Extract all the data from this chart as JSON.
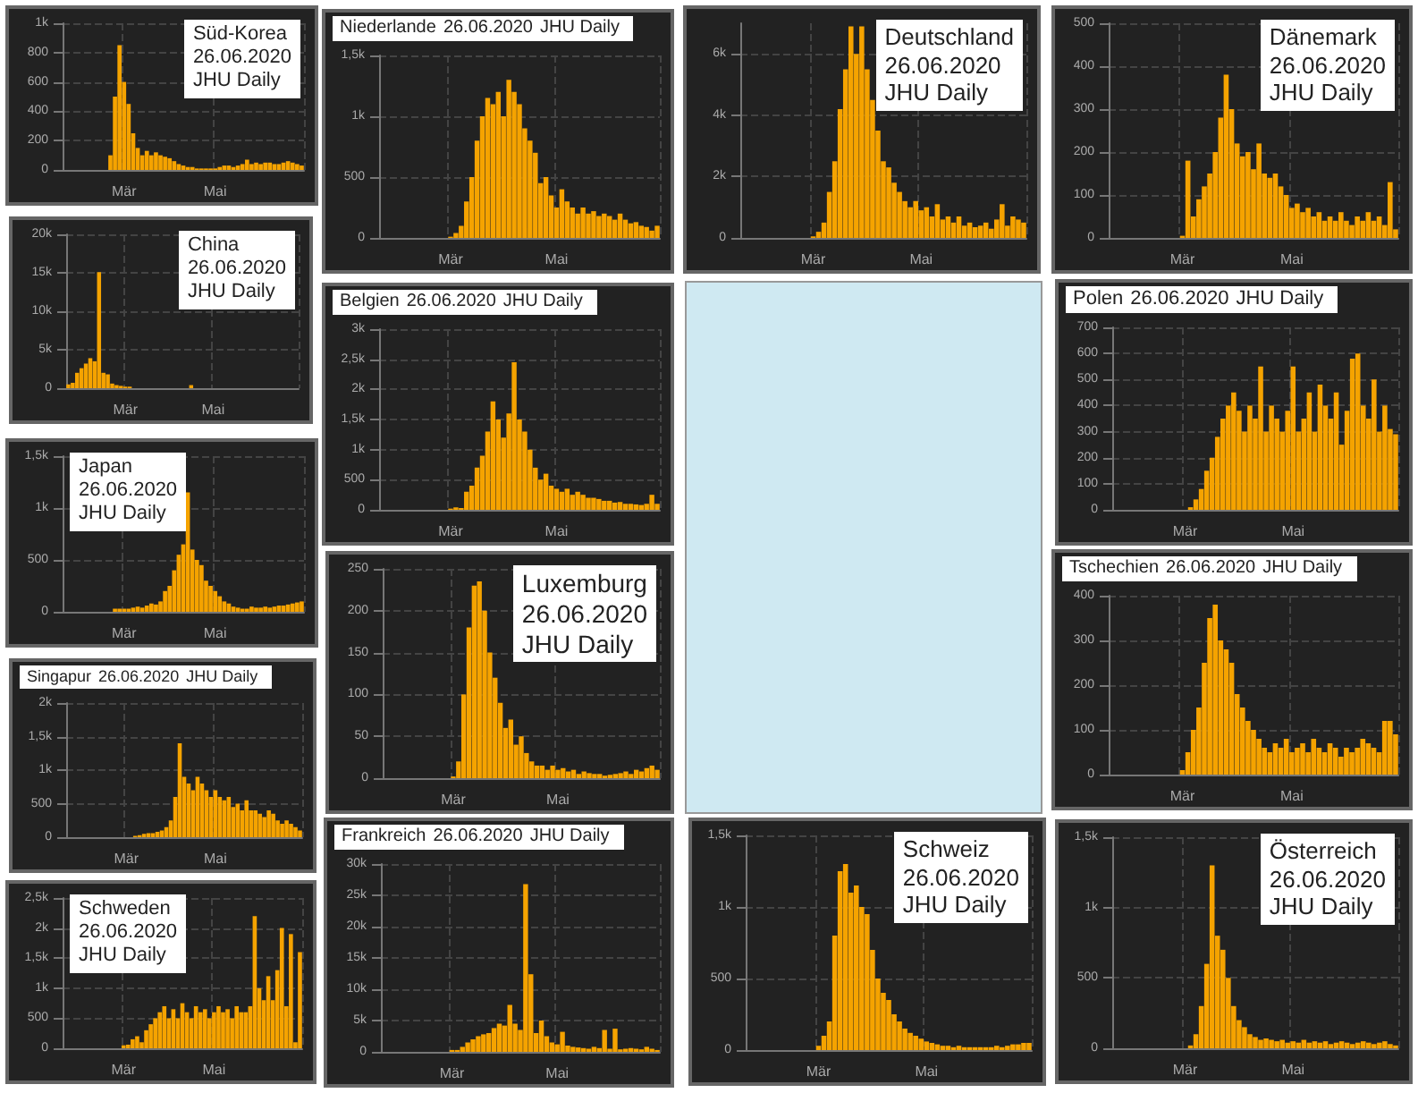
{
  "chart_data": [
    {
      "type": "bar",
      "title": "Süd-Korea",
      "subtitle": "26.06.2020",
      "annotations": [
        "JHU Daily"
      ],
      "color": "#f5a300",
      "grid": true,
      "ylim": [
        0,
        1000
      ],
      "yticks": [
        0,
        200,
        400,
        600,
        800,
        {
          "value": 1000,
          "label": "1k"
        }
      ],
      "categories": [
        null,
        null,
        null,
        null,
        null,
        null,
        null,
        null,
        null,
        null,
        null,
        null,
        null,
        "Mär",
        null,
        null,
        null,
        null,
        null,
        null,
        null,
        null,
        null,
        null,
        null,
        null,
        null,
        null,
        null,
        null,
        null,
        null,
        null,
        "Mai",
        null,
        null,
        null,
        null,
        null,
        null,
        null,
        null,
        null,
        null,
        null,
        null,
        null,
        null,
        null,
        null,
        null,
        null,
        null
      ],
      "values": [
        0,
        0,
        0,
        0,
        0,
        0,
        0,
        0,
        0,
        0,
        100,
        500,
        850,
        600,
        450,
        250,
        150,
        100,
        130,
        100,
        120,
        100,
        90,
        80,
        60,
        40,
        30,
        20,
        20,
        10,
        10,
        10,
        10,
        10,
        20,
        30,
        30,
        20,
        30,
        40,
        70,
        40,
        50,
        40,
        50,
        50,
        40,
        40,
        50,
        60,
        50,
        40,
        30
      ]
    },
    {
      "type": "bar",
      "title": "China",
      "subtitle": "26.06.2020",
      "annotations": [
        "JHU Daily"
      ],
      "color": "#f5a300",
      "grid": true,
      "ylim": [
        0,
        20000
      ],
      "yticks": [
        0,
        {
          "value": 5000,
          "label": "5k"
        },
        {
          "value": 10000,
          "label": "10k"
        },
        {
          "value": 15000,
          "label": "15k"
        },
        {
          "value": 20000,
          "label": "20k"
        }
      ],
      "categories": [
        null,
        null,
        null,
        null,
        null,
        null,
        null,
        null,
        null,
        null,
        null,
        null,
        null,
        "Mär",
        null,
        null,
        null,
        null,
        null,
        null,
        null,
        null,
        null,
        null,
        null,
        null,
        null,
        null,
        null,
        null,
        null,
        null,
        null,
        "Mai",
        null,
        null,
        null,
        null,
        null,
        null,
        null,
        null,
        null,
        null,
        null,
        null,
        null,
        null,
        null,
        null,
        null,
        null,
        null
      ],
      "values": [
        500,
        700,
        2000,
        2600,
        3200,
        3900,
        3500,
        15100,
        2000,
        1800,
        600,
        400,
        300,
        200,
        200,
        0,
        0,
        0,
        0,
        0,
        0,
        0,
        0,
        0,
        0,
        0,
        0,
        0,
        400,
        0,
        0,
        0,
        0,
        0,
        0,
        0,
        0,
        0,
        0,
        0,
        0,
        0,
        0,
        0,
        0,
        0,
        0,
        0,
        0,
        0,
        0,
        0,
        0
      ]
    },
    {
      "type": "bar",
      "title": "Japan",
      "subtitle": "26.06.2020",
      "annotations": [
        "JHU Daily"
      ],
      "color": "#f5a300",
      "grid": true,
      "ylim": [
        0,
        1500
      ],
      "yticks": [
        0,
        500,
        {
          "value": 1000,
          "label": "1k"
        },
        {
          "value": 1500,
          "label": "1,5k"
        }
      ],
      "categories": [
        null,
        null,
        null,
        null,
        null,
        null,
        null,
        null,
        null,
        null,
        null,
        null,
        null,
        "Mär",
        null,
        null,
        null,
        null,
        null,
        null,
        null,
        null,
        null,
        null,
        null,
        null,
        null,
        null,
        null,
        null,
        null,
        null,
        null,
        "Mai",
        null,
        null,
        null,
        null,
        null,
        null,
        null,
        null,
        null,
        null,
        null,
        null,
        null,
        null,
        null,
        null,
        null,
        null,
        null
      ],
      "values": [
        0,
        0,
        0,
        0,
        0,
        0,
        0,
        0,
        0,
        0,
        0,
        30,
        30,
        30,
        30,
        40,
        50,
        40,
        60,
        80,
        70,
        100,
        200,
        250,
        400,
        550,
        650,
        1150,
        600,
        500,
        450,
        300,
        250,
        200,
        150,
        100,
        80,
        50,
        40,
        30,
        30,
        50,
        40,
        40,
        50,
        40,
        50,
        60,
        60,
        70,
        80,
        90,
        100
      ]
    },
    {
      "type": "bar",
      "title": "Singapur",
      "subtitle": "26.06.2020",
      "annotations": [
        "JHU Daily"
      ],
      "color": "#f5a300",
      "grid": true,
      "ylim": [
        0,
        2000
      ],
      "yticks": [
        0,
        500,
        {
          "value": 1000,
          "label": "1k"
        },
        {
          "value": 1500,
          "label": "1,5k"
        },
        {
          "value": 2000,
          "label": "2k"
        }
      ],
      "categories": [
        null,
        null,
        null,
        null,
        null,
        null,
        null,
        null,
        null,
        null,
        null,
        null,
        null,
        "Mär",
        null,
        null,
        null,
        null,
        null,
        null,
        null,
        null,
        null,
        null,
        null,
        null,
        null,
        null,
        null,
        null,
        null,
        null,
        null,
        "Mai",
        null,
        null,
        null,
        null,
        null,
        null,
        null,
        null,
        null,
        null,
        null,
        null,
        null,
        null,
        null,
        null,
        null,
        null,
        null
      ],
      "values": [
        0,
        0,
        0,
        0,
        0,
        0,
        0,
        0,
        0,
        0,
        0,
        0,
        0,
        0,
        0,
        20,
        30,
        50,
        60,
        60,
        80,
        100,
        150,
        250,
        600,
        1400,
        900,
        800,
        700,
        900,
        800,
        700,
        600,
        700,
        600,
        550,
        600,
        450,
        500,
        400,
        550,
        400,
        400,
        350,
        300,
        400,
        350,
        250,
        200,
        250,
        200,
        150,
        100
      ]
    },
    {
      "type": "bar",
      "title": "Schweden",
      "subtitle": "26.06.2020",
      "annotations": [
        "JHU Daily"
      ],
      "color": "#f5a300",
      "grid": true,
      "ylim": [
        0,
        2500
      ],
      "yticks": [
        0,
        500,
        {
          "value": 1000,
          "label": "1k"
        },
        {
          "value": 1500,
          "label": "1,5k"
        },
        {
          "value": 2000,
          "label": "2k"
        },
        {
          "value": 2500,
          "label": "2,5k"
        }
      ],
      "categories": [
        null,
        null,
        null,
        null,
        null,
        null,
        null,
        null,
        null,
        null,
        null,
        null,
        null,
        "Mär",
        null,
        null,
        null,
        null,
        null,
        null,
        null,
        null,
        null,
        null,
        null,
        null,
        null,
        null,
        null,
        null,
        null,
        null,
        null,
        "Mai",
        null,
        null,
        null,
        null,
        null,
        null,
        null,
        null,
        null,
        null,
        null,
        null,
        null,
        null,
        null,
        null,
        null,
        null,
        null
      ],
      "values": [
        0,
        0,
        0,
        0,
        0,
        0,
        0,
        0,
        0,
        0,
        0,
        0,
        0,
        50,
        60,
        150,
        200,
        100,
        300,
        400,
        500,
        600,
        700,
        500,
        650,
        500,
        750,
        600,
        500,
        700,
        600,
        650,
        500,
        600,
        700,
        600,
        650,
        500,
        700,
        600,
        600,
        700,
        2200,
        1000,
        800,
        1200,
        800,
        1300,
        2000,
        700,
        1900,
        100,
        1600
      ]
    },
    {
      "type": "bar",
      "title": "Niederlande",
      "subtitle": "26.06.2020",
      "annotations": [
        "JHU Daily"
      ],
      "color": "#f5a300",
      "grid": true,
      "ylim": [
        0,
        1500
      ],
      "yticks": [
        0,
        500,
        {
          "value": 1000,
          "label": "1k"
        },
        {
          "value": 1500,
          "label": "1,5k"
        }
      ],
      "categories": [
        null,
        null,
        null,
        null,
        null,
        null,
        null,
        null,
        null,
        null,
        null,
        null,
        null,
        "Mär",
        null,
        null,
        null,
        null,
        null,
        null,
        null,
        null,
        null,
        null,
        null,
        null,
        null,
        null,
        null,
        null,
        null,
        null,
        null,
        "Mai",
        null,
        null,
        null,
        null,
        null,
        null,
        null,
        null,
        null,
        null,
        null,
        null,
        null,
        null,
        null,
        null,
        null,
        null,
        null
      ],
      "values": [
        0,
        0,
        0,
        0,
        0,
        0,
        0,
        0,
        0,
        0,
        0,
        0,
        0,
        10,
        40,
        100,
        300,
        500,
        800,
        1000,
        1150,
        1100,
        1200,
        1000,
        1300,
        1200,
        1100,
        900,
        800,
        700,
        450,
        500,
        350,
        250,
        400,
        300,
        250,
        200,
        250,
        200,
        220,
        180,
        200,
        180,
        150,
        200,
        150,
        120,
        130,
        100,
        90,
        60,
        100
      ]
    },
    {
      "type": "bar",
      "title": "Belgien",
      "subtitle": "26.06.2020",
      "annotations": [
        "JHU Daily"
      ],
      "color": "#f5a300",
      "grid": true,
      "ylim": [
        0,
        3000
      ],
      "yticks": [
        0,
        500,
        {
          "value": 1000,
          "label": "1k"
        },
        {
          "value": 1500,
          "label": "1,5k"
        },
        {
          "value": 2000,
          "label": "2k"
        },
        {
          "value": 2500,
          "label": "2,5k"
        },
        {
          "value": 3000,
          "label": "3k"
        }
      ],
      "categories": [
        null,
        null,
        null,
        null,
        null,
        null,
        null,
        null,
        null,
        null,
        null,
        null,
        null,
        "Mär",
        null,
        null,
        null,
        null,
        null,
        null,
        null,
        null,
        null,
        null,
        null,
        null,
        null,
        null,
        null,
        null,
        null,
        null,
        null,
        "Mai",
        null,
        null,
        null,
        null,
        null,
        null,
        null,
        null,
        null,
        null,
        null,
        null,
        null,
        null,
        null,
        null,
        null,
        null,
        null
      ],
      "values": [
        0,
        0,
        0,
        0,
        0,
        0,
        0,
        0,
        0,
        0,
        0,
        0,
        0,
        20,
        40,
        30,
        300,
        400,
        700,
        900,
        1300,
        1800,
        1500,
        1200,
        1600,
        2450,
        1500,
        1300,
        1000,
        700,
        500,
        600,
        400,
        350,
        300,
        350,
        250,
        300,
        250,
        200,
        200,
        180,
        150,
        150,
        120,
        130,
        100,
        100,
        90,
        80,
        100,
        250,
        100
      ]
    },
    {
      "type": "bar",
      "title": "Luxemburg",
      "subtitle": "26.06.2020",
      "annotations": [
        "JHU Daily"
      ],
      "color": "#f5a300",
      "grid": true,
      "ylim": [
        0,
        250
      ],
      "yticks": [
        0,
        50,
        100,
        150,
        200,
        250
      ],
      "categories": [
        null,
        null,
        null,
        null,
        null,
        null,
        null,
        null,
        null,
        null,
        null,
        null,
        null,
        "Mär",
        null,
        null,
        null,
        null,
        null,
        null,
        null,
        null,
        null,
        null,
        null,
        null,
        null,
        null,
        null,
        null,
        null,
        null,
        null,
        "Mai",
        null,
        null,
        null,
        null,
        null,
        null,
        null,
        null,
        null,
        null,
        null,
        null,
        null,
        null,
        null,
        null,
        null,
        null,
        null
      ],
      "values": [
        0,
        0,
        0,
        0,
        0,
        0,
        0,
        0,
        0,
        0,
        0,
        0,
        0,
        2,
        20,
        100,
        180,
        230,
        235,
        200,
        150,
        120,
        90,
        60,
        70,
        40,
        50,
        30,
        20,
        15,
        15,
        10,
        15,
        10,
        12,
        8,
        10,
        5,
        8,
        6,
        5,
        5,
        3,
        4,
        5,
        6,
        8,
        5,
        10,
        8,
        12,
        15,
        10
      ]
    },
    {
      "type": "bar",
      "title": "Frankreich",
      "subtitle": "26.06.2020",
      "annotations": [
        "JHU Daily"
      ],
      "color": "#f5a300",
      "grid": true,
      "ylim": [
        0,
        30000
      ],
      "yticks": [
        0,
        {
          "value": 5000,
          "label": "5k"
        },
        {
          "value": 10000,
          "label": "10k"
        },
        {
          "value": 15000,
          "label": "15k"
        },
        {
          "value": 20000,
          "label": "20k"
        },
        {
          "value": 25000,
          "label": "25k"
        },
        {
          "value": 30000,
          "label": "30k"
        }
      ],
      "categories": [
        null,
        null,
        null,
        null,
        null,
        null,
        null,
        null,
        null,
        null,
        null,
        null,
        null,
        "Mär",
        null,
        null,
        null,
        null,
        null,
        null,
        null,
        null,
        null,
        null,
        null,
        null,
        null,
        null,
        null,
        null,
        null,
        null,
        null,
        "Mai",
        null,
        null,
        null,
        null,
        null,
        null,
        null,
        null,
        null,
        null,
        null,
        null,
        null,
        null,
        null,
        null,
        null,
        null,
        null
      ],
      "values": [
        0,
        0,
        0,
        0,
        0,
        0,
        0,
        0,
        0,
        0,
        0,
        0,
        0,
        300,
        300,
        800,
        1500,
        2000,
        2500,
        2800,
        3000,
        3800,
        4500,
        4200,
        7500,
        4500,
        3500,
        26800,
        12400,
        3000,
        5000,
        2500,
        1500,
        1200,
        3200,
        1000,
        800,
        700,
        600,
        500,
        800,
        600,
        3500,
        500,
        3700,
        400,
        500,
        600,
        500,
        400,
        800,
        500,
        300
      ]
    },
    {
      "type": "bar",
      "title": "Deutschland",
      "subtitle": "26.06.2020",
      "annotations": [
        "JHU Daily"
      ],
      "color": "#f5a300",
      "grid": true,
      "ylim": [
        0,
        7000
      ],
      "yticks": [
        0,
        {
          "value": 2000,
          "label": "2k"
        },
        {
          "value": 4000,
          "label": "4k"
        },
        {
          "value": 6000,
          "label": "6k"
        }
      ],
      "categories": [
        null,
        null,
        null,
        null,
        null,
        null,
        null,
        null,
        null,
        null,
        null,
        null,
        null,
        "Mär",
        null,
        null,
        null,
        null,
        null,
        null,
        null,
        null,
        null,
        null,
        null,
        null,
        null,
        null,
        null,
        null,
        null,
        null,
        null,
        "Mai",
        null,
        null,
        null,
        null,
        null,
        null,
        null,
        null,
        null,
        null,
        null,
        null,
        null,
        null,
        null,
        null,
        null,
        null,
        null
      ],
      "values": [
        0,
        0,
        0,
        0,
        0,
        0,
        0,
        0,
        0,
        0,
        0,
        0,
        0,
        50,
        200,
        500,
        1500,
        2500,
        4200,
        5500,
        6900,
        6000,
        6900,
        5500,
        4500,
        3500,
        2500,
        2300,
        1800,
        1500,
        1200,
        1000,
        1200,
        900,
        1000,
        700,
        1100,
        600,
        700,
        500,
        700,
        400,
        500,
        350,
        400,
        500,
        300,
        600,
        1100,
        400,
        700,
        600,
        500
      ]
    },
    {
      "type": "bar",
      "title": "Schweiz",
      "subtitle": "26.06.2020",
      "annotations": [
        "JHU Daily"
      ],
      "color": "#f5a300",
      "grid": true,
      "ylim": [
        0,
        1500
      ],
      "yticks": [
        0,
        500,
        {
          "value": 1000,
          "label": "1k"
        },
        {
          "value": 1500,
          "label": "1,5k"
        }
      ],
      "categories": [
        null,
        null,
        null,
        null,
        null,
        null,
        null,
        null,
        null,
        null,
        null,
        null,
        null,
        "Mär",
        null,
        null,
        null,
        null,
        null,
        null,
        null,
        null,
        null,
        null,
        null,
        null,
        null,
        null,
        null,
        null,
        null,
        null,
        null,
        "Mai",
        null,
        null,
        null,
        null,
        null,
        null,
        null,
        null,
        null,
        null,
        null,
        null,
        null,
        null,
        null,
        null,
        null,
        null,
        null
      ],
      "values": [
        0,
        0,
        0,
        0,
        0,
        0,
        0,
        0,
        0,
        0,
        0,
        0,
        0,
        30,
        100,
        200,
        800,
        1250,
        1300,
        1100,
        1150,
        1000,
        950,
        700,
        500,
        400,
        350,
        250,
        200,
        150,
        120,
        100,
        80,
        60,
        50,
        40,
        30,
        30,
        20,
        30,
        20,
        20,
        20,
        20,
        20,
        20,
        30,
        20,
        30,
        40,
        40,
        50,
        50
      ]
    },
    {
      "type": "bar",
      "title": "Dänemark",
      "subtitle": "26.06.2020",
      "annotations": [
        "JHU Daily"
      ],
      "color": "#f5a300",
      "grid": true,
      "ylim": [
        0,
        500
      ],
      "yticks": [
        0,
        100,
        200,
        300,
        400,
        500
      ],
      "categories": [
        null,
        null,
        null,
        null,
        null,
        null,
        null,
        null,
        null,
        null,
        null,
        null,
        null,
        "Mär",
        null,
        null,
        null,
        null,
        null,
        null,
        null,
        null,
        null,
        null,
        null,
        null,
        null,
        null,
        null,
        null,
        null,
        null,
        null,
        "Mai",
        null,
        null,
        null,
        null,
        null,
        null,
        null,
        null,
        null,
        null,
        null,
        null,
        null,
        null,
        null,
        null,
        null,
        null,
        null
      ],
      "values": [
        0,
        0,
        0,
        0,
        0,
        0,
        0,
        0,
        0,
        0,
        0,
        0,
        0,
        5,
        180,
        50,
        90,
        120,
        150,
        200,
        280,
        380,
        300,
        220,
        190,
        200,
        160,
        220,
        150,
        140,
        150,
        120,
        100,
        70,
        80,
        60,
        70,
        50,
        60,
        40,
        50,
        40,
        60,
        40,
        30,
        50,
        40,
        60,
        40,
        50,
        30,
        130,
        20
      ]
    },
    {
      "type": "bar",
      "title": "Polen",
      "subtitle": "26.06.2020",
      "annotations": [
        "JHU Daily"
      ],
      "color": "#f5a300",
      "grid": true,
      "ylim": [
        0,
        700
      ],
      "yticks": [
        0,
        100,
        200,
        300,
        400,
        500,
        600,
        700
      ],
      "categories": [
        null,
        null,
        null,
        null,
        null,
        null,
        null,
        null,
        null,
        null,
        null,
        null,
        null,
        "Mär",
        null,
        null,
        null,
        null,
        null,
        null,
        null,
        null,
        null,
        null,
        null,
        null,
        null,
        null,
        null,
        null,
        null,
        null,
        null,
        "Mai",
        null,
        null,
        null,
        null,
        null,
        null,
        null,
        null,
        null,
        null,
        null,
        null,
        null,
        null,
        null,
        null,
        null,
        null,
        null
      ],
      "values": [
        0,
        0,
        0,
        0,
        0,
        0,
        0,
        0,
        0,
        0,
        0,
        0,
        0,
        0,
        10,
        40,
        80,
        150,
        200,
        280,
        350,
        400,
        450,
        380,
        300,
        400,
        350,
        550,
        300,
        400,
        350,
        300,
        380,
        550,
        300,
        350,
        450,
        300,
        480,
        400,
        350,
        450,
        250,
        380,
        580,
        600,
        400,
        350,
        500,
        300,
        400,
        310,
        290
      ]
    },
    {
      "type": "bar",
      "title": "Tschechien",
      "subtitle": "26.06.2020",
      "annotations": [
        "JHU Daily"
      ],
      "color": "#f5a300",
      "grid": true,
      "ylim": [
        0,
        400
      ],
      "yticks": [
        0,
        100,
        200,
        300,
        400
      ],
      "categories": [
        null,
        null,
        null,
        null,
        null,
        null,
        null,
        null,
        null,
        null,
        null,
        null,
        null,
        "Mär",
        null,
        null,
        null,
        null,
        null,
        null,
        null,
        null,
        null,
        null,
        null,
        null,
        null,
        null,
        null,
        null,
        null,
        null,
        null,
        "Mai",
        null,
        null,
        null,
        null,
        null,
        null,
        null,
        null,
        null,
        null,
        null,
        null,
        null,
        null,
        null,
        null,
        null,
        null,
        null
      ],
      "values": [
        0,
        0,
        0,
        0,
        0,
        0,
        0,
        0,
        0,
        0,
        0,
        0,
        0,
        10,
        50,
        100,
        150,
        250,
        350,
        380,
        300,
        280,
        250,
        180,
        150,
        120,
        100,
        80,
        60,
        50,
        70,
        60,
        80,
        50,
        60,
        70,
        50,
        80,
        60,
        50,
        70,
        60,
        40,
        60,
        50,
        60,
        80,
        70,
        60,
        50,
        120,
        120,
        90
      ]
    },
    {
      "type": "bar",
      "title": "Österreich",
      "subtitle": "26.06.2020",
      "annotations": [
        "JHU Daily"
      ],
      "color": "#f5a300",
      "grid": true,
      "ylim": [
        0,
        1500
      ],
      "yticks": [
        0,
        500,
        {
          "value": 1000,
          "label": "1k"
        },
        {
          "value": 1500,
          "label": "1,5k"
        }
      ],
      "categories": [
        null,
        null,
        null,
        null,
        null,
        null,
        null,
        null,
        null,
        null,
        null,
        null,
        null,
        "Mär",
        null,
        null,
        null,
        null,
        null,
        null,
        null,
        null,
        null,
        null,
        null,
        null,
        null,
        null,
        null,
        null,
        null,
        null,
        null,
        "Mai",
        null,
        null,
        null,
        null,
        null,
        null,
        null,
        null,
        null,
        null,
        null,
        null,
        null,
        null,
        null,
        null,
        null,
        null,
        null
      ],
      "values": [
        0,
        0,
        0,
        0,
        0,
        0,
        0,
        0,
        0,
        0,
        0,
        0,
        0,
        0,
        20,
        100,
        300,
        600,
        1300,
        800,
        700,
        500,
        300,
        200,
        150,
        100,
        80,
        60,
        70,
        60,
        50,
        60,
        40,
        50,
        40,
        60,
        40,
        50,
        40,
        50,
        30,
        40,
        50,
        40,
        30,
        40,
        50,
        40,
        30,
        40,
        50,
        30,
        20
      ]
    }
  ]
}
